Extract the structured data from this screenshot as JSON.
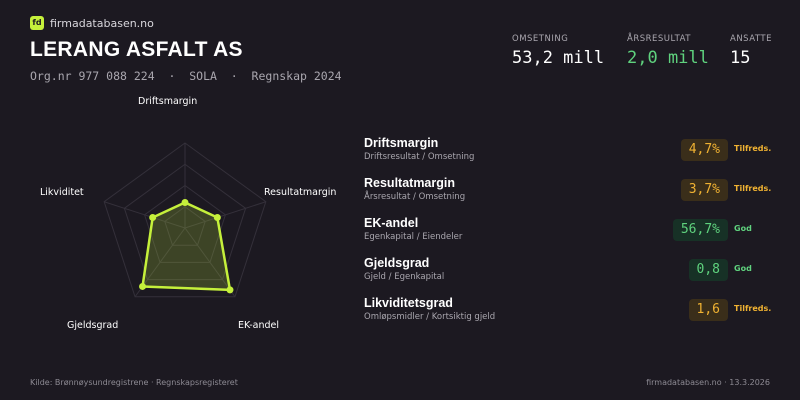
{
  "brand": {
    "logo_text": "fd",
    "name": "firmadatabasen.no"
  },
  "company": {
    "name": "LERANG ASFALT  AS",
    "meta": "Org.nr 977 088 224  ·  SOLA  ·  Regnskap 2024"
  },
  "kpis": [
    {
      "label": "OMSETNING",
      "value": "53,2 mill"
    },
    {
      "label": "ÅRSRESULTAT",
      "value": "2,0 mill",
      "color": "#5fd27e"
    },
    {
      "label": "ANSATTE",
      "value": "15"
    }
  ],
  "radar": {
    "axes": [
      "Driftsmargin",
      "Resultatmargin",
      "EK-andel",
      "Gjeldsgrad",
      "Likviditet"
    ],
    "scores": [
      0.3,
      0.4,
      0.9,
      0.85,
      0.4
    ],
    "fill_color": "#c5f03b"
  },
  "metrics": [
    {
      "name": "Driftsmargin",
      "sub": "Driftsresultat / Omsetning",
      "value": "4,7%",
      "status": "Tilfreds.",
      "level": "warn"
    },
    {
      "name": "Resultatmargin",
      "sub": "Årsresultat / Omsetning",
      "value": "3,7%",
      "status": "Tilfreds.",
      "level": "warn"
    },
    {
      "name": "EK-andel",
      "sub": "Egenkapital / Eiendeler",
      "value": "56,7%",
      "status": "God",
      "level": "good"
    },
    {
      "name": "Gjeldsgrad",
      "sub": "Gjeld / Egenkapital",
      "value": "0,8",
      "status": "God",
      "level": "good"
    },
    {
      "name": "Likviditetsgrad",
      "sub": "Omløpsmidler / Kortsiktig gjeld",
      "value": "1,6",
      "status": "Tilfreds.",
      "level": "warn"
    }
  ],
  "footer": {
    "source": "Kilde: Brønnøysundregistrene · Regnskapsregisteret",
    "site_date": "firmadatabasen.no · 13.3.2026"
  }
}
